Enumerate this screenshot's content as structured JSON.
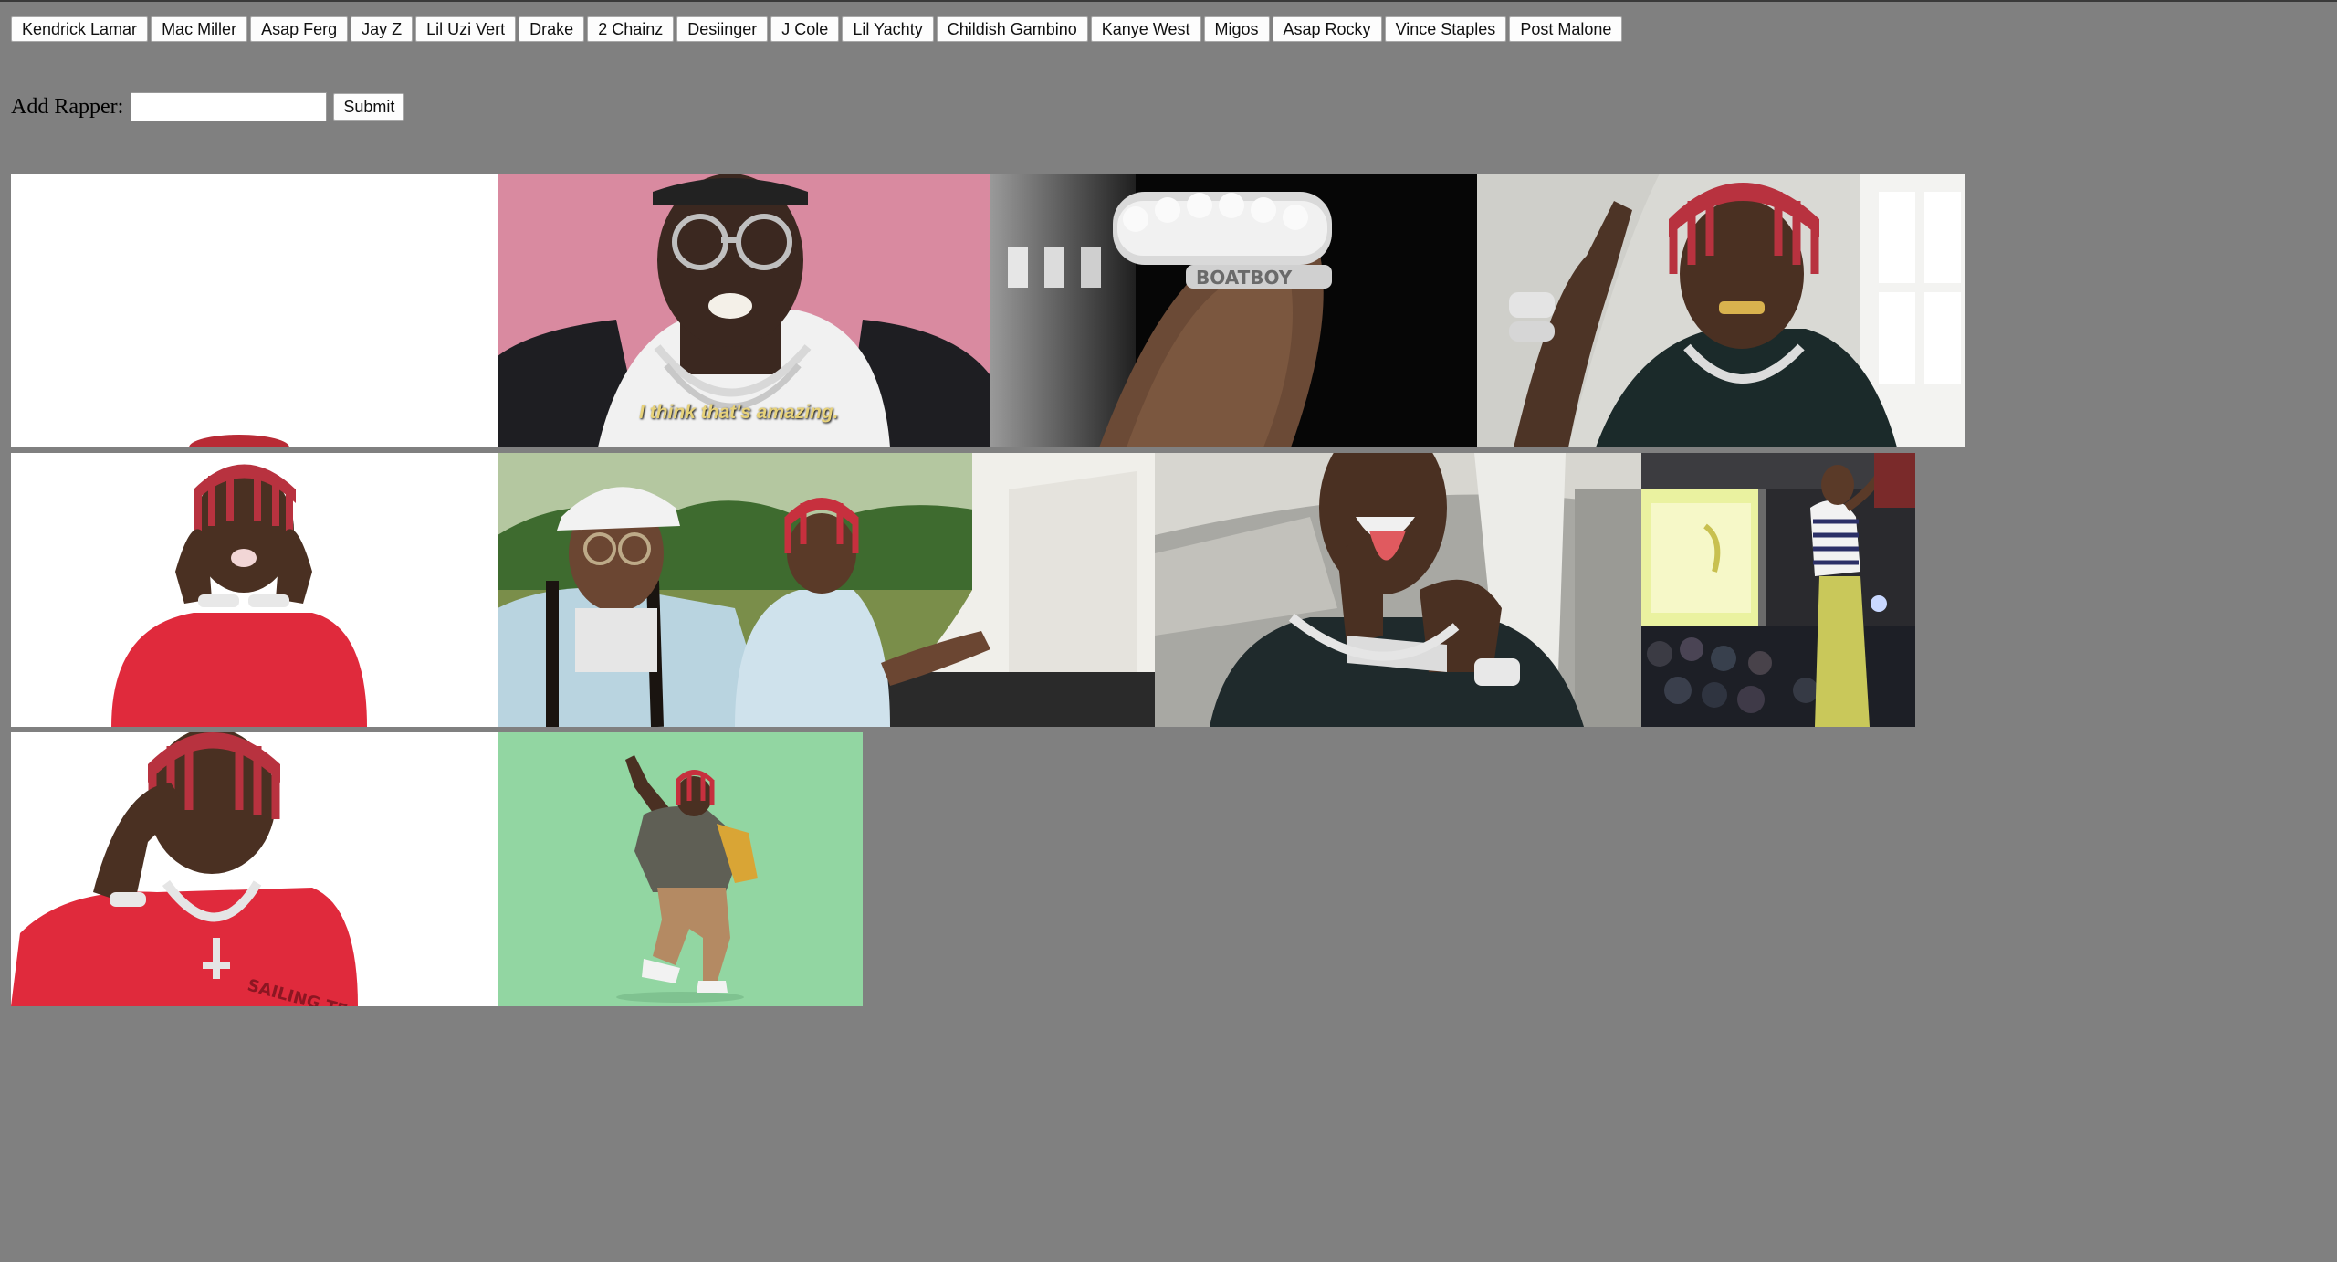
{
  "rappers": [
    "Kendrick Lamar",
    "Mac Miller",
    "Asap Ferg",
    "Jay Z",
    "Lil Uzi Vert",
    "Drake",
    "2 Chainz",
    "Desiinger",
    "J Cole",
    "Lil Yachty",
    "Childish Gambino",
    "Kanye West",
    "Migos",
    "Asap Rocky",
    "Vince Staples",
    "Post Malone"
  ],
  "form": {
    "label": "Add Rapper:",
    "input_value": "",
    "input_placeholder": "",
    "submit_label": "Submit"
  },
  "gifs": {
    "caption_1": "I think that's amazing.",
    "bracelet_text": "BOATBOY",
    "shirt_text": "SAILING TEAM"
  },
  "colors": {
    "page_bg": "#808080",
    "pink_bg": "#d98aa0",
    "green_bg": "#92d6a2"
  }
}
